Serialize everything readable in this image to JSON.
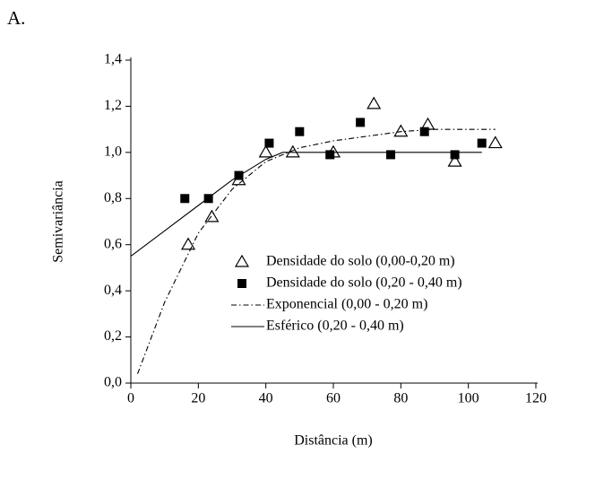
{
  "panel_label": "A.",
  "chart_data": {
    "type": "scatter",
    "x_label": "Distância (m)",
    "y_label": "Semivariância",
    "xlim": [
      0,
      120
    ],
    "xticks": [
      0,
      20,
      40,
      60,
      80,
      100,
      120
    ],
    "ylim": [
      0,
      1.4
    ],
    "yticks": [
      {
        "value": 0,
        "label": "0,0"
      },
      {
        "value": 0.2,
        "label": "0,2"
      },
      {
        "value": 0.4,
        "label": "0,4"
      },
      {
        "value": 0.6,
        "label": "0,6"
      },
      {
        "value": 0.8,
        "label": "0,8"
      },
      {
        "value": 1.0,
        "label": "1,0"
      },
      {
        "value": 1.2,
        "label": "1,2"
      },
      {
        "value": 1.4,
        "label": "1,4"
      }
    ],
    "legend": "lower-right",
    "series": [
      {
        "name": "Densidade do solo (0,00-0,20 m)",
        "kind": "marker",
        "marker": "triangle-open",
        "color": "#000000",
        "x": [
          17,
          24,
          32,
          40,
          48,
          60,
          72,
          80,
          88,
          96,
          108
        ],
        "values": [
          0.6,
          0.72,
          0.88,
          1.0,
          1.0,
          1.0,
          1.21,
          1.09,
          1.12,
          0.96,
          1.04
        ]
      },
      {
        "name": "Densidade do solo (0,20 - 0,40 m)",
        "kind": "marker",
        "marker": "square",
        "color": "#000000",
        "x": [
          16,
          23,
          32,
          41,
          50,
          59,
          68,
          77,
          87,
          96,
          104
        ],
        "values": [
          0.8,
          0.8,
          0.9,
          1.04,
          1.09,
          0.99,
          1.13,
          0.99,
          1.09,
          0.99,
          1.04
        ]
      },
      {
        "name": "Exponencial (0,00 - 0,20 m)",
        "kind": "line",
        "dash": "dash-dot",
        "color": "#000000",
        "x": [
          2,
          10,
          20,
          30,
          40,
          50,
          60,
          70,
          80,
          90,
          108
        ],
        "values": [
          0.04,
          0.35,
          0.65,
          0.84,
          0.96,
          1.02,
          1.05,
          1.07,
          1.09,
          1.1,
          1.1
        ]
      },
      {
        "name": "Esférico (0,20 - 0,40 m)",
        "kind": "line",
        "dash": "solid",
        "color": "#000000",
        "x": [
          0,
          10,
          20,
          30,
          40,
          45,
          104
        ],
        "values": [
          0.55,
          0.66,
          0.77,
          0.88,
          0.97,
          1.0,
          1.0
        ]
      }
    ]
  }
}
